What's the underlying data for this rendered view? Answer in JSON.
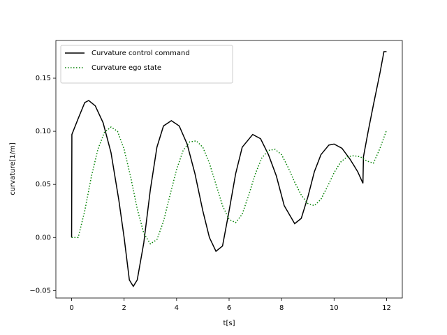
{
  "chart_data": {
    "type": "line",
    "xlabel": "t[s]",
    "ylabel": "curvature[1/m]",
    "xlim": [
      -0.6,
      12.6
    ],
    "ylim": [
      -0.057,
      0.1855
    ],
    "xticks": [
      0,
      2,
      4,
      6,
      8,
      10,
      12
    ],
    "yticks": [
      {
        "value": -0.05,
        "label": "−0.05"
      },
      {
        "value": 0,
        "label": "0.00"
      },
      {
        "value": 0.05,
        "label": "0.05"
      },
      {
        "value": 0.1,
        "label": "0.10"
      },
      {
        "value": 0.15,
        "label": "0.15"
      }
    ],
    "legend": "upper left",
    "series": [
      {
        "name": "Curvature control command",
        "color": "#000000",
        "style": "solid",
        "x": [
          0,
          0.01,
          0.25,
          0.5,
          0.65,
          0.9,
          1.2,
          1.5,
          1.8,
          2.0,
          2.2,
          2.35,
          2.5,
          2.75,
          3.0,
          3.25,
          3.5,
          3.8,
          4.1,
          4.4,
          4.7,
          5.0,
          5.25,
          5.5,
          5.75,
          6.0,
          6.25,
          6.5,
          6.9,
          7.2,
          7.5,
          7.8,
          8.1,
          8.5,
          8.75,
          9.0,
          9.25,
          9.5,
          9.8,
          10.0,
          10.3,
          10.6,
          10.9,
          11.1,
          11.12,
          11.3,
          11.5,
          11.75,
          11.9,
          12.0
        ],
        "values": [
          0,
          0.097,
          0.112,
          0.127,
          0.129,
          0.124,
          0.108,
          0.08,
          0.035,
          0.0,
          -0.04,
          -0.046,
          -0.04,
          -0.005,
          0.045,
          0.085,
          0.105,
          0.11,
          0.105,
          0.088,
          0.06,
          0.025,
          0.0,
          -0.013,
          -0.008,
          0.025,
          0.06,
          0.085,
          0.097,
          0.093,
          0.078,
          0.058,
          0.03,
          0.013,
          0.018,
          0.038,
          0.062,
          0.078,
          0.087,
          0.088,
          0.084,
          0.074,
          0.062,
          0.051,
          0.076,
          0.1,
          0.125,
          0.155,
          0.175,
          0.175
        ]
      },
      {
        "name": "Curvature ego state",
        "color": "#008000",
        "style": "dotted",
        "x": [
          0,
          0.25,
          0.5,
          0.75,
          1.0,
          1.25,
          1.5,
          1.75,
          2.0,
          2.25,
          2.5,
          2.75,
          3.0,
          3.25,
          3.5,
          3.75,
          4.0,
          4.25,
          4.5,
          4.75,
          5.0,
          5.25,
          5.5,
          5.75,
          6.0,
          6.25,
          6.5,
          6.75,
          7.0,
          7.25,
          7.5,
          7.75,
          8.0,
          8.25,
          8.5,
          8.75,
          9.0,
          9.25,
          9.5,
          9.75,
          10.0,
          10.25,
          10.5,
          10.75,
          11.0,
          11.25,
          11.5,
          11.75,
          12.0
        ],
        "values": [
          0,
          0,
          0.025,
          0.057,
          0.083,
          0.099,
          0.104,
          0.1,
          0.083,
          0.057,
          0.027,
          0.004,
          -0.006,
          -0.002,
          0.015,
          0.04,
          0.064,
          0.082,
          0.09,
          0.091,
          0.085,
          0.07,
          0.05,
          0.03,
          0.017,
          0.014,
          0.022,
          0.04,
          0.06,
          0.075,
          0.082,
          0.083,
          0.078,
          0.066,
          0.052,
          0.04,
          0.032,
          0.03,
          0.036,
          0.048,
          0.061,
          0.071,
          0.076,
          0.077,
          0.076,
          0.072,
          0.07,
          0.084,
          0.101
        ]
      }
    ]
  }
}
